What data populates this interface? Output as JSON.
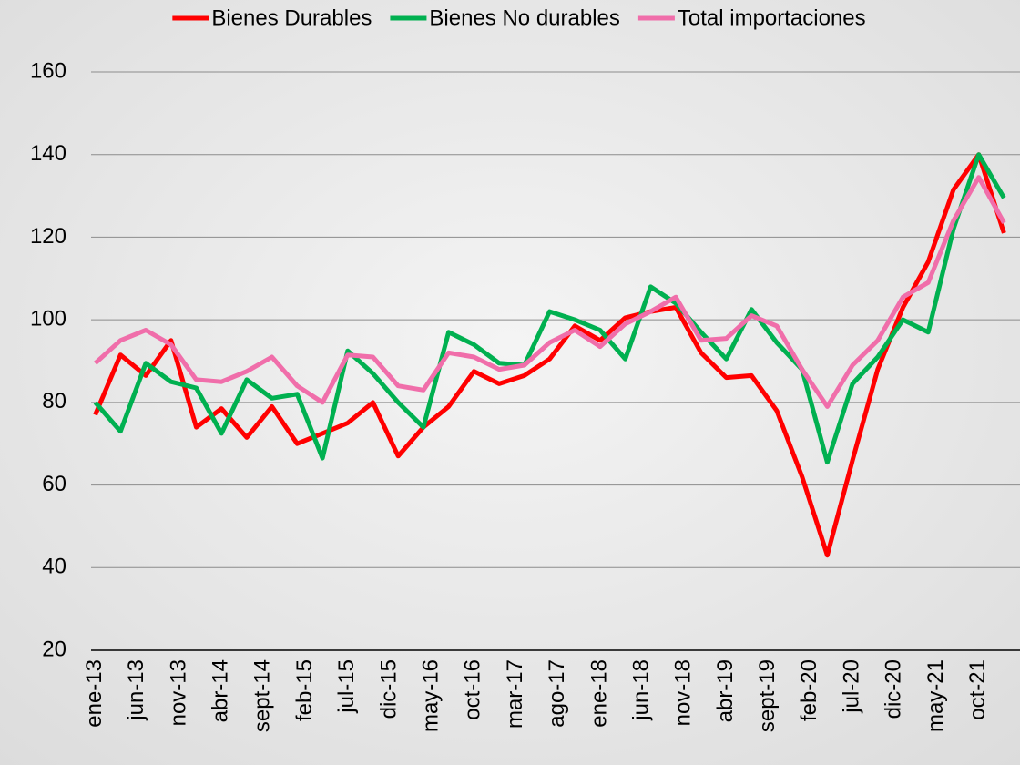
{
  "chart_data": {
    "type": "line",
    "x": [
      0,
      3,
      6,
      9,
      12,
      15,
      18,
      21,
      24,
      27,
      30,
      33,
      36,
      39,
      42,
      45,
      48,
      51,
      54,
      57,
      60,
      63,
      66,
      69,
      72,
      75,
      78,
      81,
      84,
      87,
      90,
      93,
      96,
      99,
      102,
      105,
      108
    ],
    "xlim": [
      -0.5,
      108.5
    ],
    "xticks": [
      {
        "value": 0,
        "label": "ene-13"
      },
      {
        "value": 5,
        "label": "jun-13"
      },
      {
        "value": 10,
        "label": "nov-13"
      },
      {
        "value": 15,
        "label": "abr-14"
      },
      {
        "value": 20,
        "label": "sept-14"
      },
      {
        "value": 25,
        "label": "feb-15"
      },
      {
        "value": 30,
        "label": "jul-15"
      },
      {
        "value": 35,
        "label": "dic-15"
      },
      {
        "value": 40,
        "label": "may-16"
      },
      {
        "value": 45,
        "label": "oct-16"
      },
      {
        "value": 50,
        "label": "mar-17"
      },
      {
        "value": 55,
        "label": "ago-17"
      },
      {
        "value": 60,
        "label": "ene-18"
      },
      {
        "value": 65,
        "label": "jun-18"
      },
      {
        "value": 70,
        "label": "nov-18"
      },
      {
        "value": 75,
        "label": "abr-19"
      },
      {
        "value": 80,
        "label": "sept-19"
      },
      {
        "value": 85,
        "label": "feb-20"
      },
      {
        "value": 90,
        "label": "jul-20"
      },
      {
        "value": 95,
        "label": "dic-20"
      },
      {
        "value": 100,
        "label": "may-21"
      },
      {
        "value": 105,
        "label": "oct-21"
      }
    ],
    "ylim": [
      20,
      160
    ],
    "yticks": [
      20,
      40,
      60,
      80,
      100,
      120,
      140,
      160
    ],
    "grid": true,
    "legend": "top",
    "series": [
      {
        "name": "Bienes Durables",
        "color": "#ff0000",
        "values": [
          77,
          91.5,
          86.5,
          95,
          74,
          78.5,
          71.5,
          79,
          70,
          72.5,
          75,
          80,
          67,
          74,
          79,
          87.5,
          84.5,
          86.5,
          90.5,
          98.5,
          95,
          100.5,
          102,
          103,
          92,
          86,
          86.5,
          78,
          62,
          43,
          66,
          88,
          103,
          114,
          131.5,
          140,
          121
        ]
      },
      {
        "name": "Bienes No durables",
        "color": "#00b050",
        "values": [
          80,
          73,
          89.5,
          85,
          83.5,
          72.5,
          85.5,
          81,
          82,
          66.5,
          92.5,
          87,
          80,
          74,
          97,
          94,
          89.5,
          89,
          102,
          100,
          97.5,
          90.5,
          108,
          104,
          97,
          90.5,
          102.5,
          94.5,
          88,
          65.5,
          84.5,
          91,
          100,
          97,
          122,
          140,
          129.5
        ]
      },
      {
        "name": "Total importaciones",
        "color": "#f06eaa",
        "values": [
          89.5,
          95,
          97.5,
          94,
          85.5,
          85,
          87.5,
          91,
          84,
          80,
          91.5,
          91,
          84,
          83,
          92,
          91,
          88,
          89,
          94.5,
          97.5,
          93.5,
          99,
          102,
          105.5,
          95,
          95.5,
          101,
          98.5,
          88,
          79,
          89,
          95,
          105.5,
          109,
          124,
          134.5,
          123.5
        ]
      }
    ]
  }
}
